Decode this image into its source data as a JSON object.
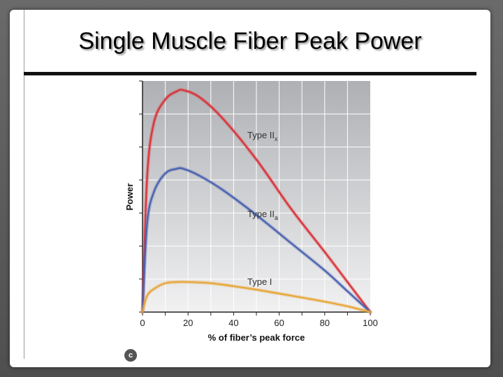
{
  "slide": {
    "title": "Single Muscle Fiber Peak Power",
    "copyright_mark": "c"
  },
  "chart_data": {
    "type": "line",
    "xlabel": "% of fiber’s peak force",
    "ylabel": "Power",
    "xlim": [
      0,
      100
    ],
    "ylim": [
      0,
      1
    ],
    "x_ticks": [
      0,
      20,
      40,
      60,
      80,
      100
    ],
    "grid": true,
    "series": [
      {
        "name": "Type II",
        "subscript": "x",
        "color": "#d9343a",
        "x": [
          0,
          2,
          5,
          10,
          15,
          18,
          25,
          35,
          50,
          65,
          80,
          90,
          100
        ],
        "y": [
          0,
          0.58,
          0.82,
          0.92,
          0.955,
          0.96,
          0.93,
          0.84,
          0.66,
          0.45,
          0.26,
          0.13,
          0
        ]
      },
      {
        "name": "Type II",
        "subscript": "a",
        "color": "#4a62b0",
        "x": [
          0,
          2,
          5,
          10,
          15,
          18,
          25,
          35,
          50,
          65,
          80,
          90,
          100
        ],
        "y": [
          0,
          0.38,
          0.52,
          0.6,
          0.62,
          0.62,
          0.59,
          0.53,
          0.42,
          0.3,
          0.18,
          0.09,
          0
        ]
      },
      {
        "name": "Type I",
        "subscript": "",
        "color": "#e8a63a",
        "x": [
          0,
          2,
          5,
          10,
          15,
          20,
          30,
          40,
          50,
          60,
          70,
          80,
          90,
          100
        ],
        "y": [
          0,
          0.07,
          0.1,
          0.125,
          0.13,
          0.13,
          0.125,
          0.112,
          0.097,
          0.08,
          0.063,
          0.045,
          0.025,
          0
        ]
      }
    ]
  }
}
